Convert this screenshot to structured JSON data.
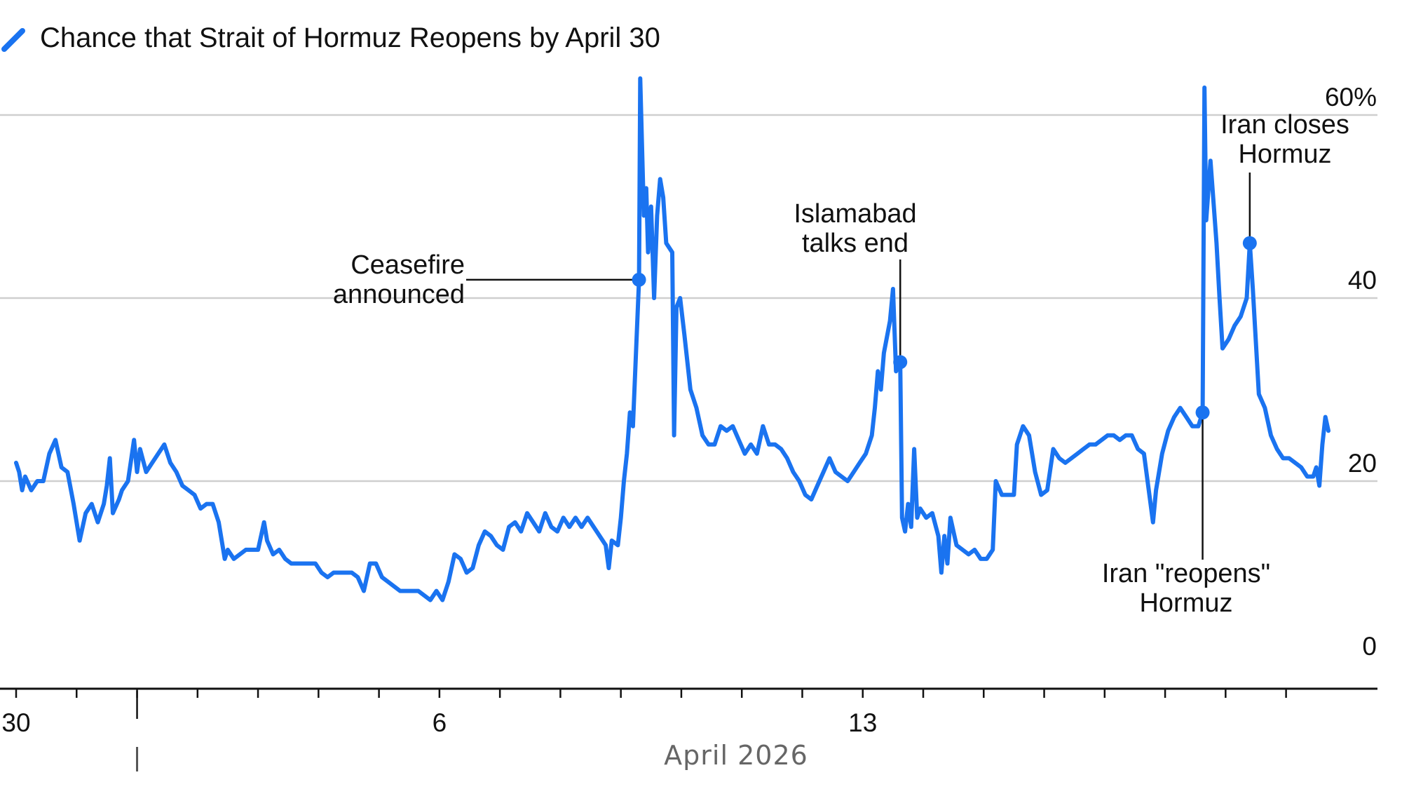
{
  "chart_data": {
    "type": "line",
    "title": "Chance that Strait of Hormuz Reopens by April 30",
    "month_label": "April 2026",
    "series": [
      {
        "name": "Chance that Strait of Hormuz Reopens by April 30",
        "color": "#1a73f0",
        "points": [
          [
            30.0,
            22
          ],
          [
            30.05,
            21
          ],
          [
            30.1,
            19
          ],
          [
            30.15,
            20.5
          ],
          [
            30.25,
            19
          ],
          [
            30.35,
            20
          ],
          [
            30.45,
            20
          ],
          [
            30.55,
            23
          ],
          [
            30.65,
            24.5
          ],
          [
            30.75,
            21.5
          ],
          [
            30.85,
            21
          ],
          [
            30.95,
            17.5
          ],
          [
            31.05,
            13.5
          ],
          [
            31.15,
            16.5
          ],
          [
            31.25,
            17.5
          ],
          [
            31.35,
            15.5
          ],
          [
            31.45,
            17.5
          ],
          [
            31.5,
            19.5
          ],
          [
            31.55,
            22.5
          ],
          [
            31.6,
            16.5
          ],
          [
            31.7,
            18
          ],
          [
            31.75,
            19
          ],
          [
            31.85,
            20
          ],
          [
            31.95,
            24.5
          ],
          [
            32.0,
            21
          ],
          [
            32.05,
            23.5
          ],
          [
            32.15,
            21
          ],
          [
            32.25,
            22
          ],
          [
            32.35,
            23
          ],
          [
            32.45,
            24
          ],
          [
            32.55,
            22
          ],
          [
            32.65,
            21
          ],
          [
            32.75,
            19.5
          ],
          [
            32.85,
            19
          ],
          [
            32.95,
            18.5
          ],
          [
            33.05,
            17
          ],
          [
            33.15,
            17.5
          ],
          [
            33.25,
            17.5
          ],
          [
            33.35,
            15.5
          ],
          [
            33.45,
            11.5
          ],
          [
            33.5,
            12.5
          ],
          [
            33.6,
            11.5
          ],
          [
            33.7,
            12
          ],
          [
            33.8,
            12.5
          ],
          [
            33.9,
            12.5
          ],
          [
            34.0,
            12.5
          ],
          [
            34.1,
            15.5
          ],
          [
            34.15,
            13.5
          ],
          [
            34.25,
            12
          ],
          [
            34.35,
            12.5
          ],
          [
            34.45,
            11.5
          ],
          [
            34.55,
            11
          ],
          [
            34.65,
            11
          ],
          [
            34.75,
            11
          ],
          [
            34.85,
            11
          ],
          [
            34.95,
            11
          ],
          [
            35.05,
            10
          ],
          [
            35.15,
            9.5
          ],
          [
            35.25,
            10
          ],
          [
            35.35,
            10
          ],
          [
            35.45,
            10
          ],
          [
            35.55,
            10
          ],
          [
            35.65,
            9.5
          ],
          [
            35.75,
            8
          ],
          [
            35.85,
            11
          ],
          [
            35.95,
            11
          ],
          [
            36.05,
            9.5
          ],
          [
            36.15,
            9
          ],
          [
            36.25,
            8.5
          ],
          [
            36.35,
            8
          ],
          [
            36.45,
            8
          ],
          [
            36.55,
            8
          ],
          [
            36.65,
            8
          ],
          [
            36.75,
            7.5
          ],
          [
            36.85,
            7
          ],
          [
            36.95,
            8
          ],
          [
            37.05,
            7
          ],
          [
            37.15,
            9
          ],
          [
            37.25,
            12
          ],
          [
            37.35,
            11.5
          ],
          [
            37.45,
            10
          ],
          [
            37.55,
            10.5
          ],
          [
            37.65,
            13
          ],
          [
            37.75,
            14.5
          ],
          [
            37.85,
            14
          ],
          [
            37.95,
            13
          ],
          [
            38.05,
            12.5
          ],
          [
            38.15,
            15
          ],
          [
            38.25,
            15.5
          ],
          [
            38.35,
            14.5
          ],
          [
            38.45,
            16.5
          ],
          [
            38.55,
            15.5
          ],
          [
            38.65,
            14.5
          ],
          [
            38.75,
            16.5
          ],
          [
            38.85,
            15
          ],
          [
            38.95,
            14.5
          ],
          [
            39.05,
            16
          ],
          [
            39.15,
            15
          ],
          [
            39.25,
            16
          ],
          [
            39.35,
            15
          ],
          [
            39.45,
            16
          ],
          [
            39.55,
            15
          ],
          [
            39.65,
            14
          ],
          [
            39.75,
            13
          ],
          [
            39.8,
            10.5
          ],
          [
            39.85,
            13.5
          ],
          [
            39.95,
            13
          ],
          [
            40.0,
            16
          ],
          [
            40.05,
            20
          ],
          [
            40.1,
            23
          ],
          [
            40.15,
            27.5
          ],
          [
            40.2,
            26
          ],
          [
            40.3,
            42
          ],
          [
            40.32,
            64
          ],
          [
            40.38,
            49
          ],
          [
            40.42,
            52
          ],
          [
            40.45,
            45
          ],
          [
            40.5,
            50
          ],
          [
            40.55,
            40
          ],
          [
            40.6,
            49
          ],
          [
            40.65,
            53
          ],
          [
            40.7,
            51
          ],
          [
            40.75,
            46
          ],
          [
            40.85,
            45
          ],
          [
            40.88,
            25
          ],
          [
            40.92,
            39
          ],
          [
            40.98,
            40
          ],
          [
            41.05,
            36
          ],
          [
            41.15,
            30
          ],
          [
            41.25,
            28
          ],
          [
            41.35,
            25
          ],
          [
            41.45,
            24
          ],
          [
            41.55,
            24
          ],
          [
            41.65,
            26
          ],
          [
            41.75,
            25.5
          ],
          [
            41.85,
            26
          ],
          [
            41.95,
            24.5
          ],
          [
            42.05,
            23
          ],
          [
            42.15,
            24
          ],
          [
            42.25,
            23
          ],
          [
            42.35,
            26
          ],
          [
            42.45,
            24
          ],
          [
            42.55,
            24
          ],
          [
            42.65,
            23.5
          ],
          [
            42.75,
            22.5
          ],
          [
            42.85,
            21
          ],
          [
            42.95,
            20
          ],
          [
            43.05,
            18.5
          ],
          [
            43.15,
            18
          ],
          [
            43.25,
            19.5
          ],
          [
            43.35,
            21
          ],
          [
            43.45,
            22.5
          ],
          [
            43.55,
            21
          ],
          [
            43.65,
            20.5
          ],
          [
            43.75,
            20
          ],
          [
            43.85,
            21
          ],
          [
            43.95,
            22
          ],
          [
            44.05,
            23
          ],
          [
            44.15,
            25
          ],
          [
            44.2,
            28
          ],
          [
            44.25,
            32
          ],
          [
            44.3,
            30
          ],
          [
            44.35,
            34
          ],
          [
            44.45,
            37.5
          ],
          [
            44.5,
            41
          ],
          [
            44.55,
            32
          ],
          [
            44.62,
            33
          ],
          [
            44.65,
            16
          ],
          [
            44.7,
            14.5
          ],
          [
            44.75,
            17.5
          ],
          [
            44.8,
            15
          ],
          [
            44.85,
            23.5
          ],
          [
            44.9,
            16
          ],
          [
            44.95,
            17
          ],
          [
            45.05,
            16
          ],
          [
            45.15,
            16.5
          ],
          [
            45.25,
            14
          ],
          [
            45.3,
            10
          ],
          [
            45.35,
            14
          ],
          [
            45.4,
            11
          ],
          [
            45.45,
            16
          ],
          [
            45.55,
            13
          ],
          [
            45.65,
            12.5
          ],
          [
            45.75,
            12
          ],
          [
            45.85,
            12.5
          ],
          [
            45.95,
            11.5
          ],
          [
            46.05,
            11.5
          ],
          [
            46.15,
            12.5
          ],
          [
            46.2,
            20
          ],
          [
            46.3,
            18.5
          ],
          [
            46.4,
            18.5
          ],
          [
            46.5,
            18.5
          ],
          [
            46.55,
            24
          ],
          [
            46.65,
            26
          ],
          [
            46.75,
            25
          ],
          [
            46.85,
            21
          ],
          [
            46.95,
            18.5
          ],
          [
            47.05,
            19
          ],
          [
            47.15,
            23.5
          ],
          [
            47.25,
            22.5
          ],
          [
            47.35,
            22
          ],
          [
            47.45,
            22.5
          ],
          [
            47.55,
            23
          ],
          [
            47.65,
            23.5
          ],
          [
            47.75,
            24
          ],
          [
            47.85,
            24
          ],
          [
            47.95,
            24.5
          ],
          [
            48.05,
            25
          ],
          [
            48.15,
            25
          ],
          [
            48.25,
            24.5
          ],
          [
            48.35,
            25
          ],
          [
            48.45,
            25
          ],
          [
            48.55,
            23.5
          ],
          [
            48.65,
            23
          ],
          [
            48.75,
            18
          ],
          [
            48.8,
            15.5
          ],
          [
            48.85,
            19
          ],
          [
            48.95,
            23
          ],
          [
            49.05,
            25.5
          ],
          [
            49.15,
            27
          ],
          [
            49.25,
            28
          ],
          [
            49.35,
            27
          ],
          [
            49.45,
            26
          ],
          [
            49.55,
            26
          ],
          [
            49.62,
            27.5
          ],
          [
            49.65,
            63
          ],
          [
            49.68,
            48.5
          ],
          [
            49.75,
            55
          ],
          [
            49.85,
            46
          ],
          [
            49.9,
            40
          ],
          [
            49.95,
            34.5
          ],
          [
            50.05,
            35.5
          ],
          [
            50.15,
            37
          ],
          [
            50.25,
            38
          ],
          [
            50.35,
            40
          ],
          [
            50.4,
            46
          ],
          [
            50.45,
            41
          ],
          [
            50.55,
            29.5
          ],
          [
            50.65,
            28
          ],
          [
            50.75,
            25
          ],
          [
            50.85,
            23.5
          ],
          [
            50.95,
            22.5
          ],
          [
            51.05,
            22.5
          ],
          [
            51.15,
            22
          ],
          [
            51.25,
            21.5
          ],
          [
            51.35,
            20.5
          ],
          [
            51.45,
            20.5
          ],
          [
            51.5,
            21.5
          ],
          [
            51.55,
            19.5
          ],
          [
            51.6,
            24
          ],
          [
            51.65,
            27
          ],
          [
            51.7,
            25.5
          ]
        ]
      }
    ],
    "x_axis": {
      "ticks": [
        {
          "x": 30.0,
          "label": "30",
          "major": true
        },
        {
          "x": 31.0,
          "label": "",
          "major": false
        },
        {
          "x": 32.0,
          "label": "",
          "major": false
        },
        {
          "x": 33.0,
          "label": "",
          "major": false
        },
        {
          "x": 34.0,
          "label": "",
          "major": false
        },
        {
          "x": 35.0,
          "label": "",
          "major": false
        },
        {
          "x": 36.0,
          "label": "",
          "major": false
        },
        {
          "x": 37.0,
          "label": "6",
          "major": true
        },
        {
          "x": 38.0,
          "label": "",
          "major": false
        },
        {
          "x": 39.0,
          "label": "",
          "major": false
        },
        {
          "x": 40.0,
          "label": "",
          "major": false
        },
        {
          "x": 41.0,
          "label": "",
          "major": false
        },
        {
          "x": 42.0,
          "label": "",
          "major": false
        },
        {
          "x": 43.0,
          "label": "",
          "major": false
        },
        {
          "x": 44.0,
          "label": "13",
          "major": true
        },
        {
          "x": 45.0,
          "label": "",
          "major": false
        },
        {
          "x": 46.0,
          "label": "",
          "major": false
        },
        {
          "x": 47.0,
          "label": "",
          "major": false
        },
        {
          "x": 48.0,
          "label": "",
          "major": false
        },
        {
          "x": 49.0,
          "label": "",
          "major": false
        },
        {
          "x": 50.0,
          "label": "",
          "major": false
        },
        {
          "x": 51.0,
          "label": "",
          "major": false
        }
      ],
      "month_start_x": 32.0,
      "range": [
        30.0,
        51.7
      ]
    },
    "y_axis": {
      "range": [
        0,
        60
      ],
      "ticks": [
        {
          "value": 0,
          "label": "0"
        },
        {
          "value": 20,
          "label": "20"
        },
        {
          "value": 40,
          "label": "40"
        },
        {
          "value": 60,
          "label": "60%"
        }
      ],
      "gridlines": true,
      "position": "right"
    },
    "annotations": [
      {
        "label_lines": [
          "Ceasefire",
          "announced"
        ],
        "x": 40.3,
        "y": 42
      },
      {
        "label_lines": [
          "Islamabad",
          "talks end"
        ],
        "x": 44.62,
        "y": 33
      },
      {
        "label_lines": [
          "Iran \"reopens\"",
          "Hormuz"
        ],
        "x": 49.62,
        "y": 27.5
      },
      {
        "label_lines": [
          "Iran closes",
          "Hormuz"
        ],
        "x": 50.4,
        "y": 46
      }
    ]
  }
}
